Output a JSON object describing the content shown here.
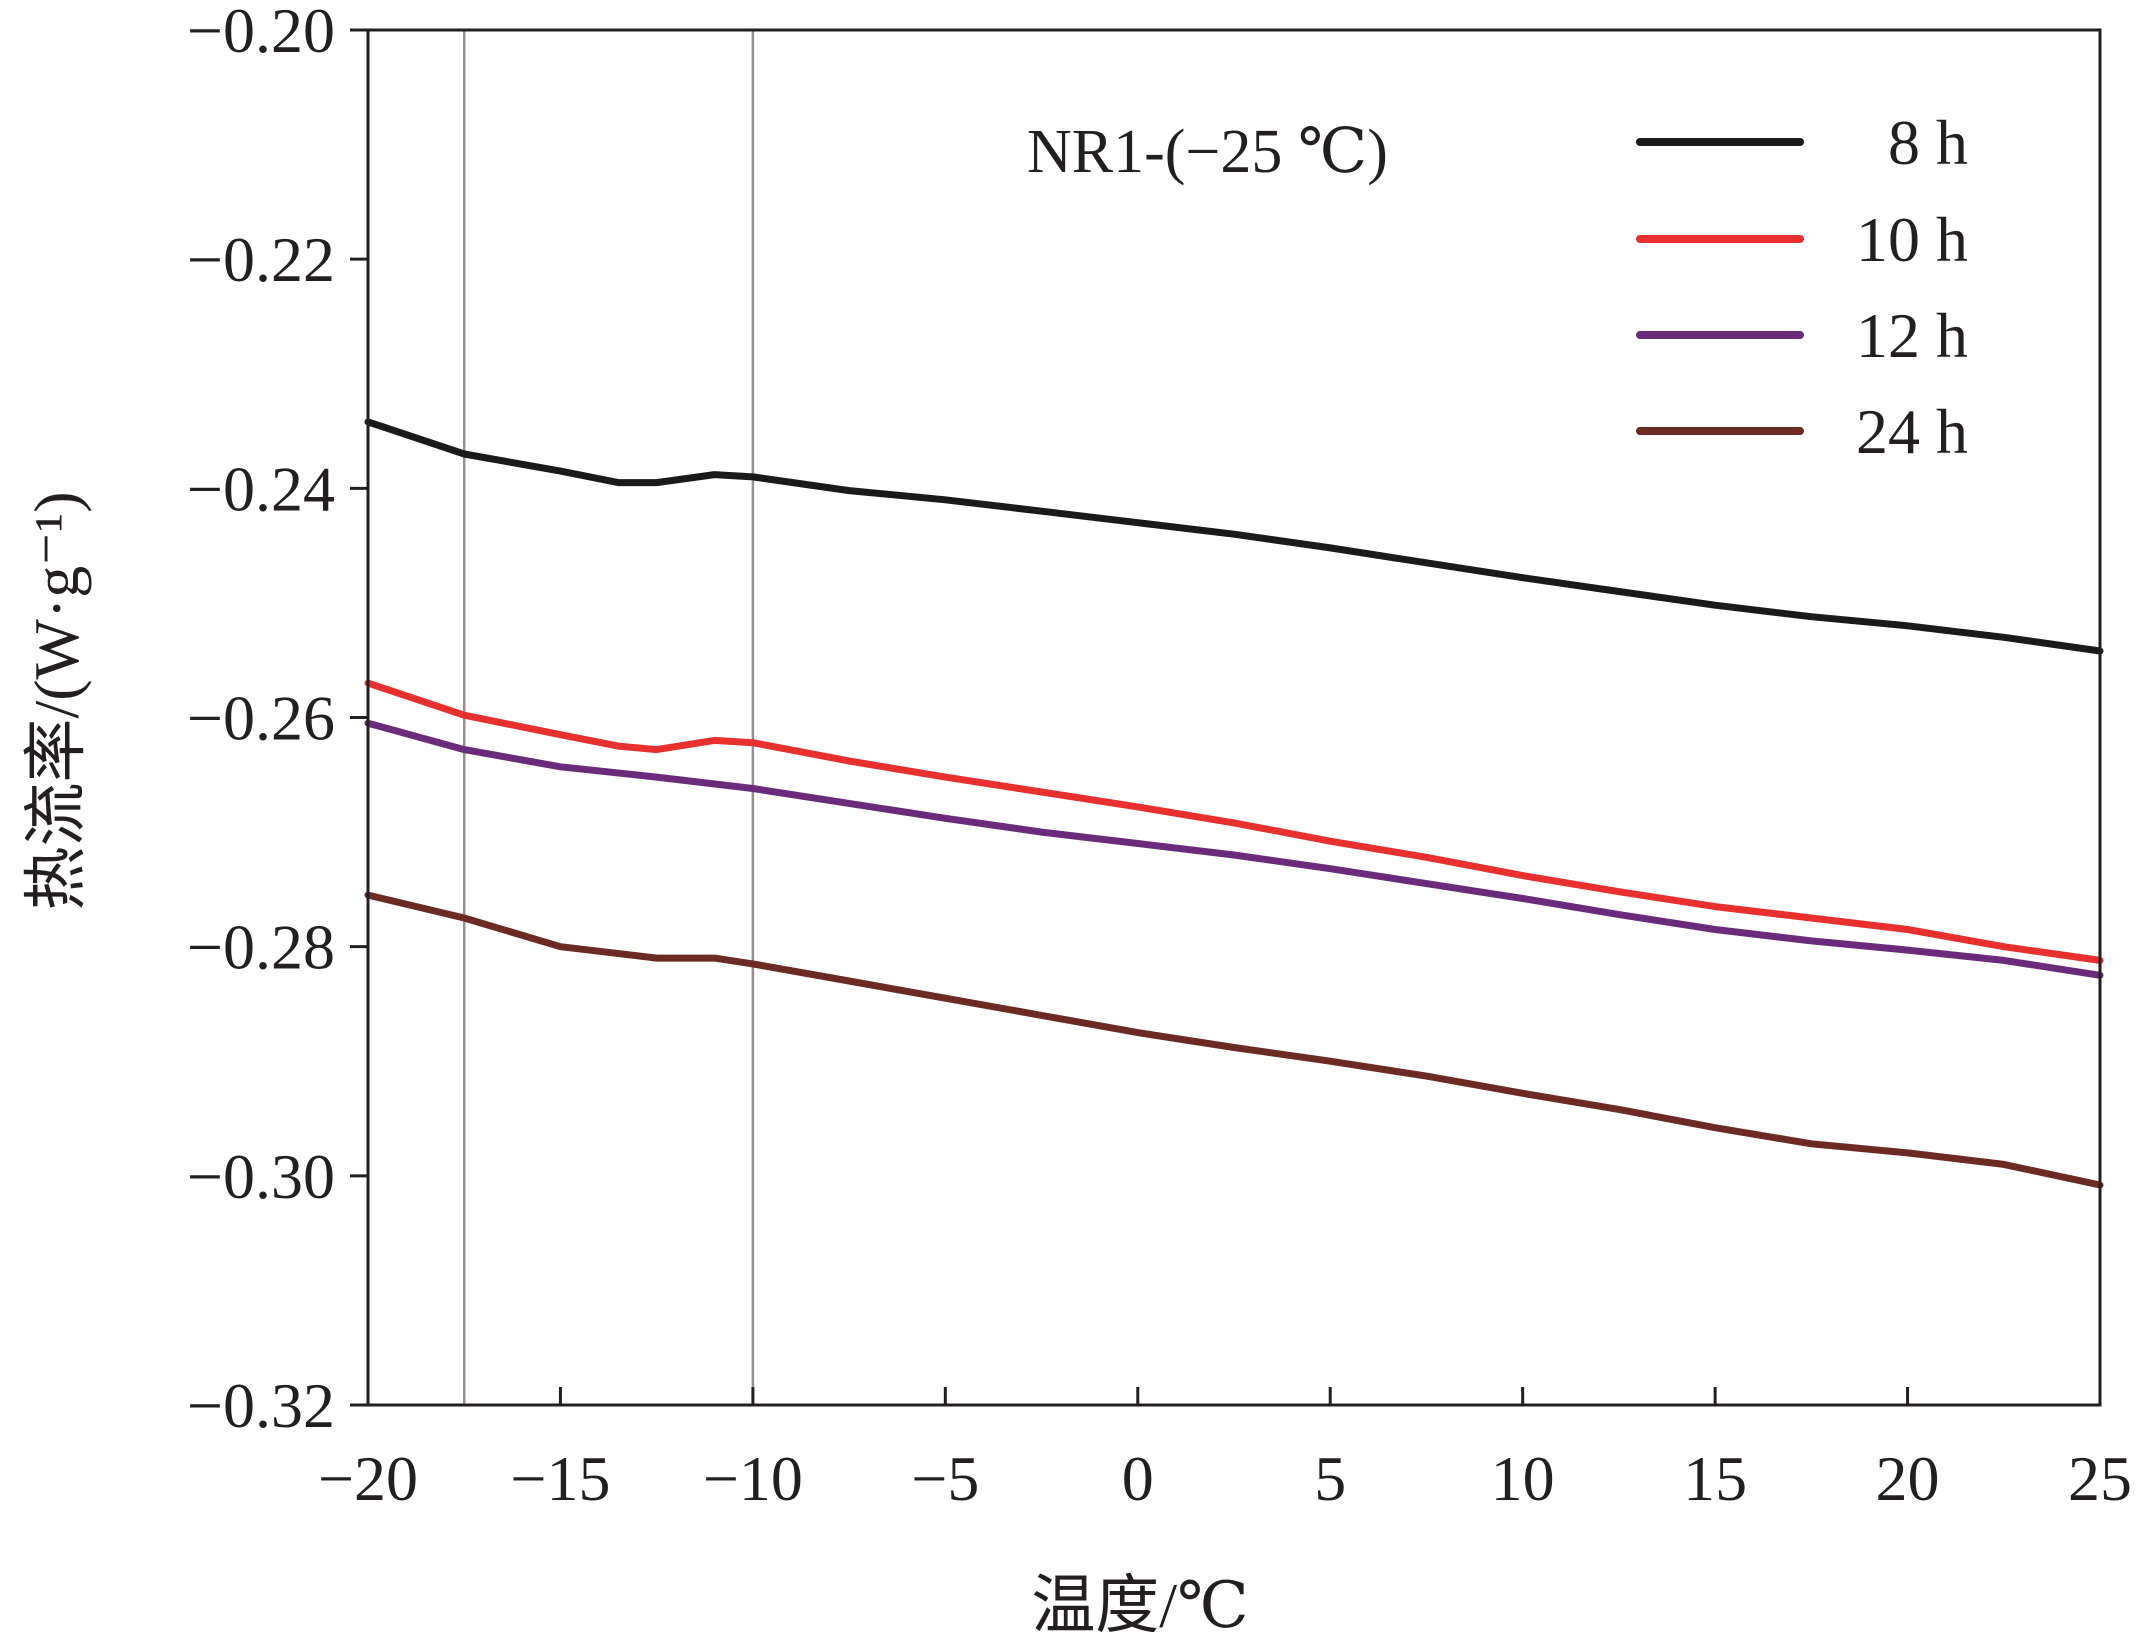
{
  "chart_data": {
    "type": "line",
    "annotation": "NR1-(−25 ℃)",
    "xlabel": "温度/℃",
    "ylabel": "热流率/(W·g⁻¹)",
    "xlim": [
      -20,
      25
    ],
    "ylim": [
      -0.32,
      -0.2
    ],
    "x_ticks": [
      -20,
      -15,
      -10,
      -5,
      0,
      5,
      10,
      15,
      20,
      25
    ],
    "x_tick_labels": [
      "−20",
      "−15",
      "−10",
      "−5",
      "0",
      "5",
      "10",
      "15",
      "20",
      "25"
    ],
    "y_ticks": [
      -0.2,
      -0.22,
      -0.24,
      -0.26,
      -0.28,
      -0.3,
      -0.32
    ],
    "y_tick_labels": [
      "−0.20",
      "−0.22",
      "−0.24",
      "−0.26",
      "−0.28",
      "−0.30",
      "−0.32"
    ],
    "reference_lines_x": [
      -17.5,
      -10
    ],
    "grid": false,
    "legend_position": "top-right",
    "series": [
      {
        "name": "8 h",
        "color": "#1a1a1a",
        "x": [
          -20,
          -17.5,
          -15,
          -13.5,
          -12.5,
          -11,
          -10,
          -7.5,
          -5,
          -2.5,
          0,
          2.5,
          5,
          7.5,
          10,
          12.5,
          15,
          17.5,
          20,
          22.5,
          25
        ],
        "y": [
          -0.2342,
          -0.237,
          -0.2385,
          -0.2395,
          -0.2395,
          -0.2388,
          -0.239,
          -0.2402,
          -0.241,
          -0.242,
          -0.243,
          -0.244,
          -0.2452,
          -0.2465,
          -0.2478,
          -0.249,
          -0.2502,
          -0.2512,
          -0.252,
          -0.253,
          -0.2542
        ]
      },
      {
        "name": "10 h",
        "color": "#e8312f",
        "x": [
          -20,
          -17.5,
          -15,
          -13.5,
          -12.5,
          -11,
          -10,
          -7.5,
          -5,
          -2.5,
          0,
          2.5,
          5,
          7.5,
          10,
          12.5,
          15,
          17.5,
          20,
          22.5,
          25
        ],
        "y": [
          -0.257,
          -0.2598,
          -0.2615,
          -0.2625,
          -0.2628,
          -0.262,
          -0.2622,
          -0.2638,
          -0.2652,
          -0.2665,
          -0.2678,
          -0.2692,
          -0.2708,
          -0.2722,
          -0.2738,
          -0.2752,
          -0.2765,
          -0.2775,
          -0.2785,
          -0.28,
          -0.2812
        ]
      },
      {
        "name": "12 h",
        "color": "#6a2c7a",
        "x": [
          -20,
          -17.5,
          -15,
          -12.5,
          -10,
          -7.5,
          -5,
          -2.5,
          0,
          2.5,
          5,
          7.5,
          10,
          12.5,
          15,
          17.5,
          20,
          22.5,
          25
        ],
        "y": [
          -0.2605,
          -0.2628,
          -0.2643,
          -0.2652,
          -0.2662,
          -0.2675,
          -0.2688,
          -0.27,
          -0.271,
          -0.272,
          -0.2732,
          -0.2745,
          -0.2758,
          -0.2772,
          -0.2785,
          -0.2795,
          -0.2803,
          -0.2812,
          -0.2825
        ]
      },
      {
        "name": "24 h",
        "color": "#6b2a22",
        "x": [
          -20,
          -17.5,
          -15,
          -12.5,
          -11,
          -10,
          -7.5,
          -5,
          -2.5,
          0,
          2.5,
          5,
          7.5,
          10,
          12.5,
          15,
          17.5,
          20,
          22.5,
          25
        ],
        "y": [
          -0.2755,
          -0.2775,
          -0.28,
          -0.281,
          -0.281,
          -0.2815,
          -0.283,
          -0.2845,
          -0.286,
          -0.2875,
          -0.2888,
          -0.29,
          -0.2913,
          -0.2928,
          -0.2942,
          -0.2958,
          -0.2972,
          -0.298,
          -0.299,
          -0.3008
        ]
      }
    ]
  }
}
